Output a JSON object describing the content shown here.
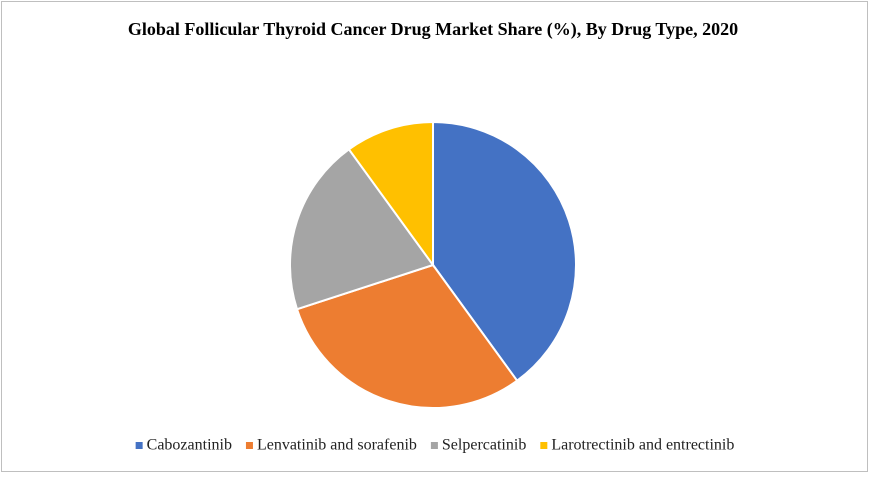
{
  "chart_data": {
    "type": "pie",
    "title": "Global Follicular Thyroid Cancer Drug Market Share (%), By Drug Type, 2020",
    "categories": [
      "Cabozantinib",
      "Lenvatinib and sorafenib",
      "Selpercatinib",
      "Larotrectinib and entrectinib"
    ],
    "values": [
      40,
      30,
      20,
      10
    ],
    "colors": [
      "#4472c4",
      "#ed7d31",
      "#a5a5a5",
      "#ffc000"
    ],
    "legend": "bottom"
  }
}
